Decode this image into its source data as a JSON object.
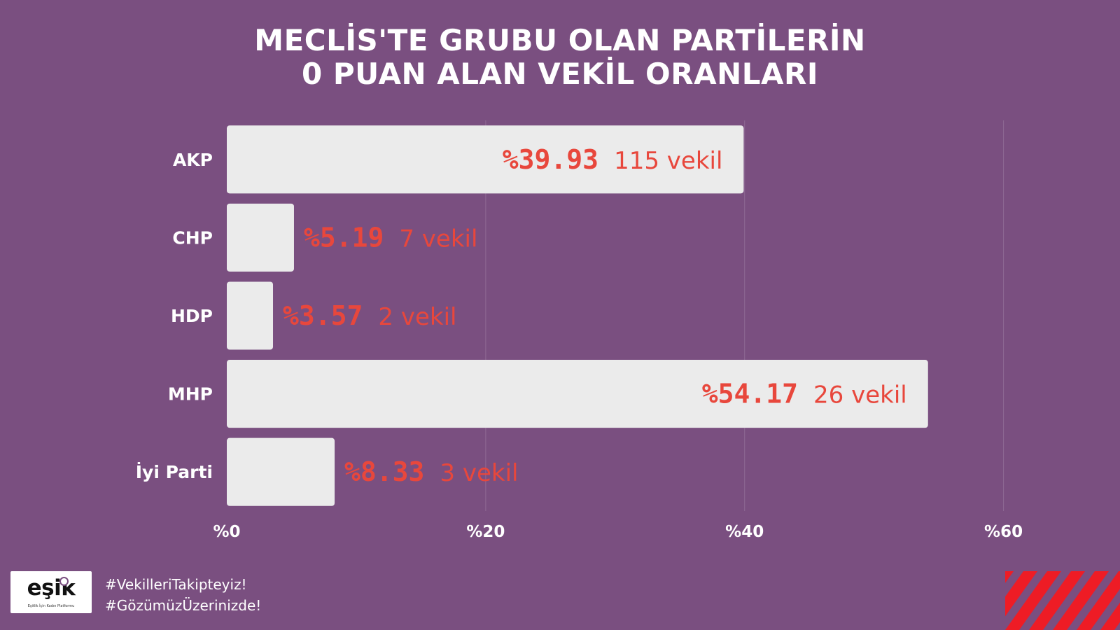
{
  "title": {
    "line1": "MECLİS'TE GRUBU OLAN PARTİLERİN",
    "line2": "0 PUAN ALAN VEKİL ORANLARI"
  },
  "chart_data": {
    "type": "bar",
    "orientation": "horizontal",
    "categories": [
      "AKP",
      "CHP",
      "HDP",
      "MHP",
      "İyi Parti"
    ],
    "values": [
      39.93,
      5.19,
      3.57,
      54.17,
      8.33
    ],
    "value_labels": [
      "%39.93",
      "%5.19",
      "%3.57",
      "%54.17",
      "%8.33"
    ],
    "count_labels": [
      "115 vekil",
      "7 vekil",
      "2 vekil",
      "26 vekil",
      "3 vekil"
    ],
    "x_ticks": [
      0,
      20,
      40,
      60
    ],
    "x_tick_labels": [
      "%0",
      "%20",
      "%40",
      "%60"
    ],
    "xlim": [
      0,
      69
    ],
    "grid": "vertical",
    "label_placement": [
      "inside",
      "outside",
      "outside",
      "inside",
      "outside"
    ]
  },
  "colors": {
    "background": "#7a4f80",
    "bar": "#ebebeb",
    "label": "#e8473c",
    "grid": "#8e6a94",
    "stripe": "#ee1c25"
  },
  "logo": {
    "word": "eşik",
    "subtitle": "Eşitlik İçin Kadın Platformu"
  },
  "hashtags": [
    "#VekilleriTakipteyiz!",
    "#GözümüzÜzerinizde!"
  ]
}
